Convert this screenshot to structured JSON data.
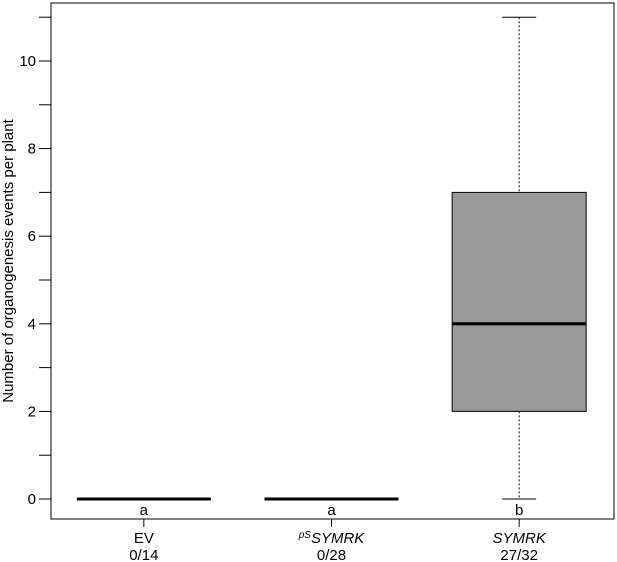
{
  "chart_data": {
    "type": "box",
    "ylabel": "Number of organogenesis events per plant",
    "ylim": [
      -0.5,
      11.3
    ],
    "yticks": [
      0,
      2,
      4,
      6,
      8,
      10
    ],
    "yminor": [
      1,
      3,
      5,
      7,
      9,
      11
    ],
    "categories": [
      {
        "label": "EV",
        "label_style": "normal",
        "prefix": "",
        "count": "0/14",
        "letter": "a",
        "min": 0,
        "q1": 0,
        "median": 0,
        "q3": 0,
        "max": 0,
        "fill": "#999999"
      },
      {
        "label": "SYMRK",
        "label_style": "italic",
        "prefix": "pS",
        "count": "0/28",
        "letter": "a",
        "min": 0,
        "q1": 0,
        "median": 0,
        "q3": 0,
        "max": 0,
        "fill": "#999999"
      },
      {
        "label": "SYMRK",
        "label_style": "italic",
        "prefix": "",
        "count": "27/32",
        "letter": "b",
        "min": 0,
        "q1": 2,
        "median": 4,
        "q3": 7,
        "max": 11,
        "fill": "#999999"
      }
    ]
  }
}
